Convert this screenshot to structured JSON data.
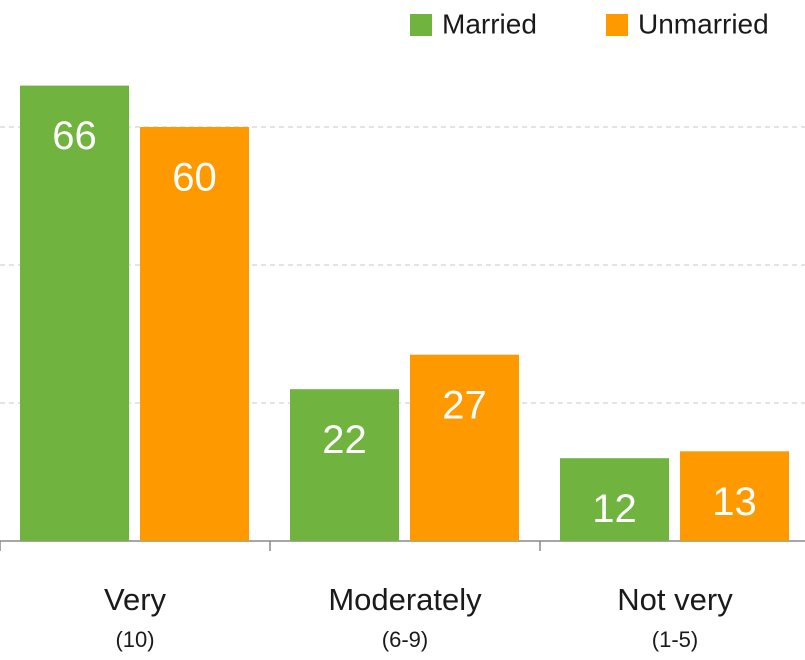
{
  "chart_data": {
    "type": "bar",
    "categories": [
      "Very",
      "Moderately",
      "Not very"
    ],
    "category_notes": [
      "(10)",
      "(6-9)",
      "(1-5)"
    ],
    "series": [
      {
        "name": "Married",
        "color": "#70b33f",
        "values": [
          66,
          22,
          12
        ]
      },
      {
        "name": "Unmarried",
        "color": "#ff9900",
        "values": [
          60,
          27,
          13
        ]
      }
    ],
    "ylim": [
      0,
      70
    ],
    "yticks": [
      0,
      20,
      40,
      60
    ],
    "grid": true,
    "legend": "top-right"
  }
}
